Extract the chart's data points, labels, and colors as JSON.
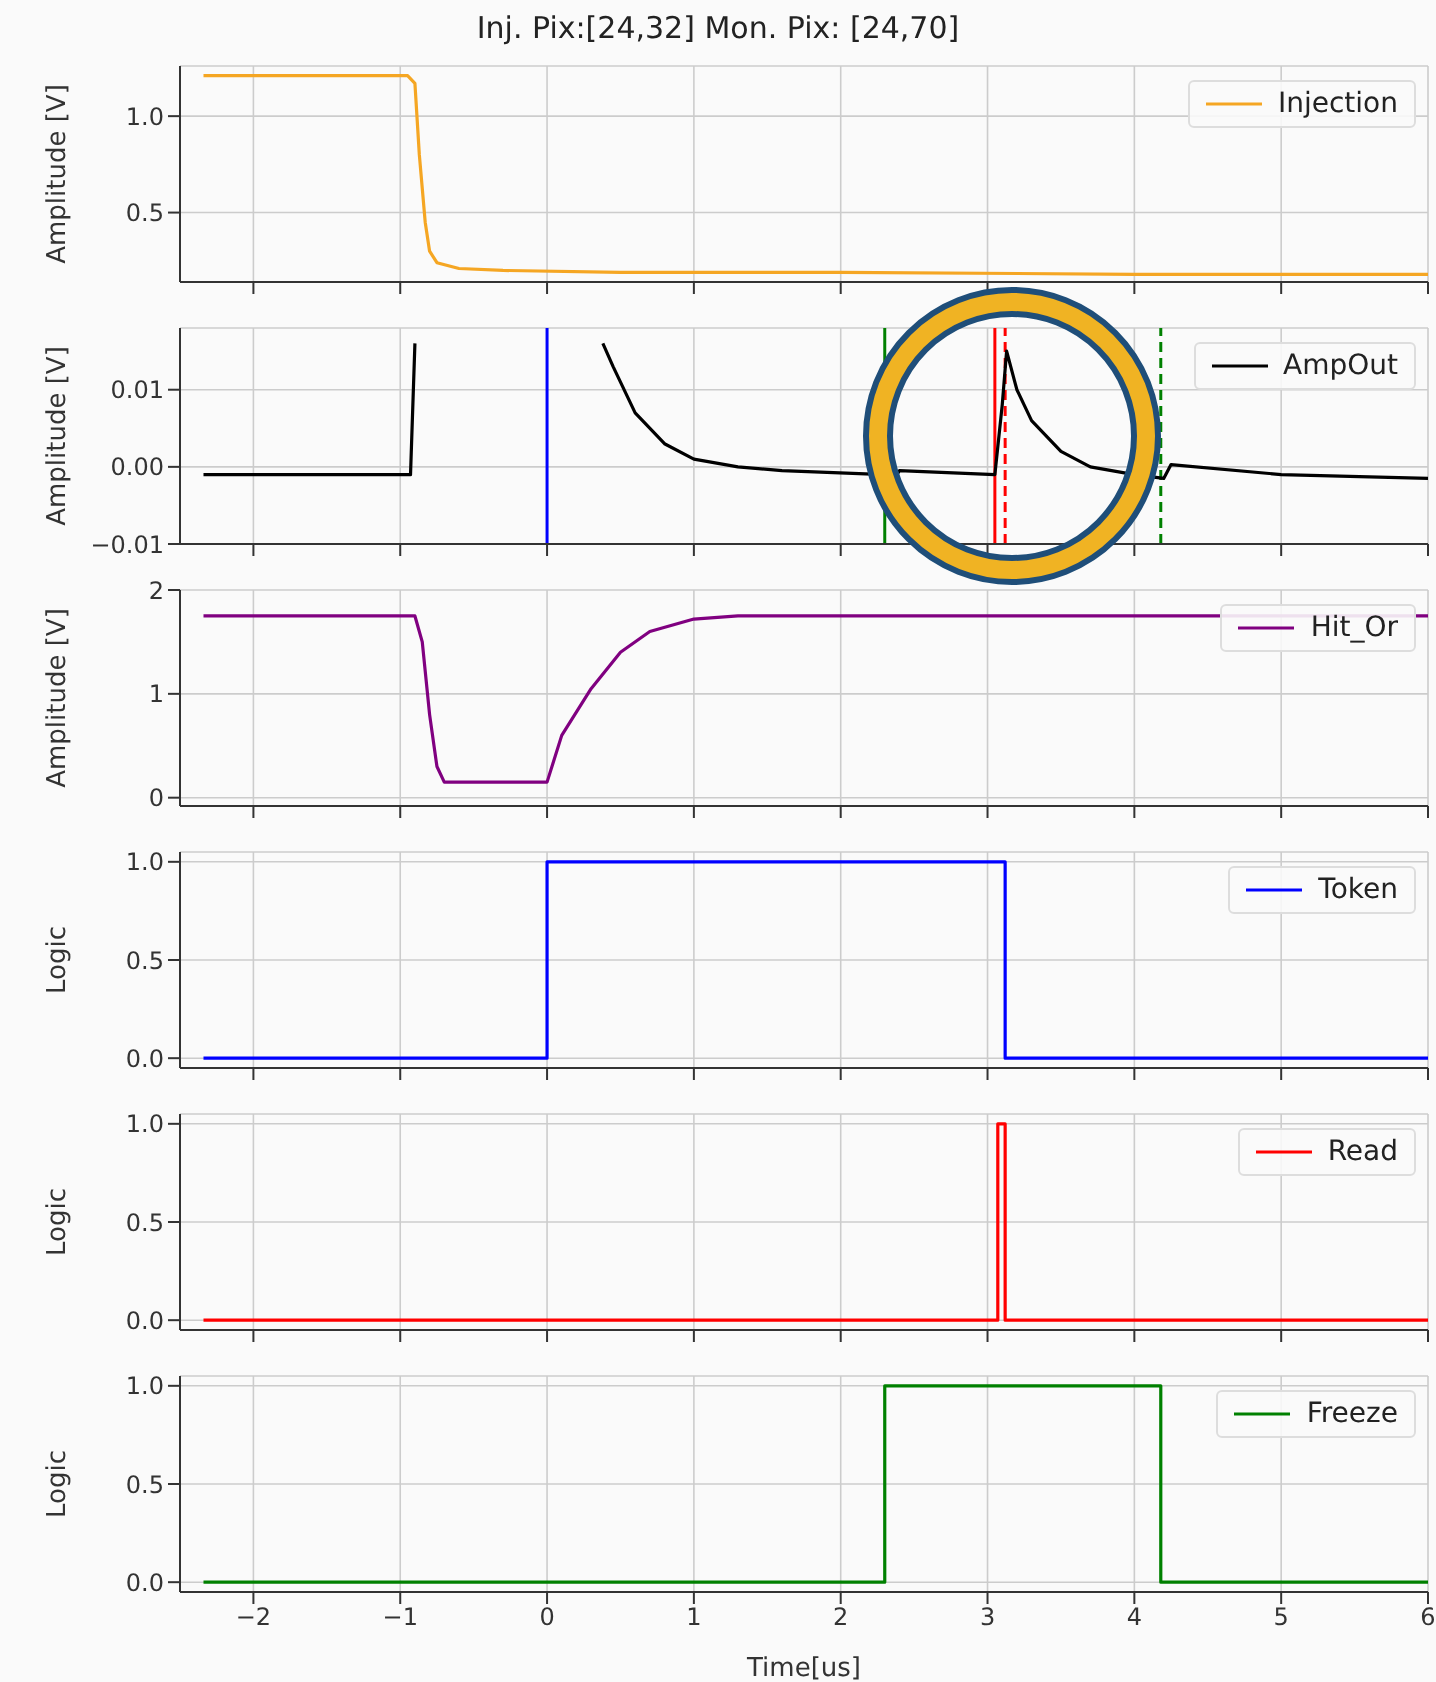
{
  "chart_data": [
    {
      "type": "line",
      "title": "Inj. Pix:[24,32] Mon. Pix: [24,70]",
      "ylabel": "Amplitude [V]",
      "xlim": [
        -2.5,
        6
      ],
      "xticks": [
        -2,
        -1,
        0,
        1,
        2,
        3,
        4,
        5,
        6
      ],
      "ylim": [
        0.14,
        1.26
      ],
      "yticks": [
        0.5,
        {
          "value": 1,
          "label": "1.0"
        }
      ],
      "grid": true,
      "legend": "top right",
      "tick_labels": "y",
      "series": [
        {
          "name": "Injection",
          "color": "#f5a623",
          "x": [
            -2.34,
            -0.95,
            -0.9,
            -0.87,
            -0.83,
            -0.8,
            -0.75,
            -0.6,
            -0.3,
            0.5,
            2,
            4,
            6
          ],
          "values": [
            1.21,
            1.21,
            1.17,
            0.8,
            0.45,
            0.3,
            0.24,
            0.21,
            0.2,
            0.19,
            0.19,
            0.18,
            0.18
          ]
        }
      ]
    },
    {
      "type": "line",
      "ylabel": "Amplitude [V]",
      "xlim": [
        -2.5,
        6
      ],
      "xticks": [
        -2,
        -1,
        0,
        1,
        2,
        3,
        4,
        5,
        6
      ],
      "ylim": [
        -0.01,
        0.018
      ],
      "yticks": [
        {
          "value": -0.01,
          "label": "−0.01"
        },
        {
          "value": 0,
          "label": "0.00"
        },
        0.01
      ],
      "grid": true,
      "legend": "top right",
      "tick_labels": "y",
      "series": [
        {
          "name": "AmpOut",
          "color": "#000000",
          "x": [
            -2.34,
            -1.5,
            -0.93,
            -0.9,
            -0.5,
            0.38,
            0.45,
            0.6,
            0.8,
            1.0,
            1.3,
            1.6,
            2.3,
            2.35,
            2.4,
            3.05,
            3.1,
            3.13,
            3.2,
            3.3,
            3.5,
            3.7,
            4.0,
            4.2,
            4.25,
            5,
            6
          ],
          "values": [
            -0.001,
            -0.001,
            -0.001,
            0.016,
            null,
            0.016,
            0.013,
            0.007,
            0.003,
            0.001,
            0,
            -0.0005,
            -0.001,
            -0.002,
            -0.0005,
            -0.001,
            0.008,
            0.015,
            0.01,
            0.006,
            0.002,
            0,
            -0.001,
            -0.0015,
            0.0003,
            -0.001,
            -0.0015
          ]
        }
      ],
      "ref_lines": [
        {
          "axis": "x",
          "value": 0,
          "color": "#0000ff",
          "line_style": "solid"
        },
        {
          "axis": "x",
          "value": 2.3,
          "color": "#008000",
          "line_style": "solid"
        },
        {
          "axis": "x",
          "value": 3.05,
          "color": "#ff0000",
          "line_style": "solid"
        },
        {
          "axis": "x",
          "value": 3.12,
          "color": "#ff0000",
          "line_style": "dashed"
        },
        {
          "axis": "x",
          "value": 4.18,
          "color": "#008000",
          "line_style": "dashed"
        }
      ]
    },
    {
      "type": "line",
      "ylabel": "Amplitude [V]",
      "xlim": [
        -2.5,
        6
      ],
      "xticks": [
        -2,
        -1,
        0,
        1,
        2,
        3,
        4,
        5,
        6
      ],
      "ylim": [
        -0.08,
        2
      ],
      "yticks": [
        0,
        1,
        2
      ],
      "grid": true,
      "legend": "top right",
      "tick_labels": "y",
      "series": [
        {
          "name": "Hit_Or",
          "color": "#800080",
          "x": [
            -2.34,
            -0.9,
            -0.85,
            -0.8,
            -0.75,
            -0.7,
            0,
            0.1,
            0.3,
            0.5,
            0.7,
            1.0,
            1.3,
            2,
            6
          ],
          "values": [
            1.75,
            1.75,
            1.5,
            0.8,
            0.3,
            0.15,
            0.15,
            0.6,
            1.05,
            1.4,
            1.6,
            1.72,
            1.75,
            1.75,
            1.75
          ]
        }
      ]
    },
    {
      "type": "step",
      "ylabel": "Logic",
      "xlim": [
        -2.5,
        6
      ],
      "xticks": [
        -2,
        -1,
        0,
        1,
        2,
        3,
        4,
        5,
        6
      ],
      "ylim": [
        -0.05,
        1.05
      ],
      "yticks": [
        {
          "value": 0,
          "label": "0.0"
        },
        0.5,
        {
          "value": 1,
          "label": "1.0"
        }
      ],
      "grid": true,
      "legend": "top right",
      "tick_labels": "y",
      "series": [
        {
          "name": "Token",
          "color": "#0000ff",
          "x": [
            -2.34,
            0,
            3.12,
            6
          ],
          "values": [
            0,
            1,
            0,
            0
          ]
        }
      ]
    },
    {
      "type": "step",
      "ylabel": "Logic",
      "xlim": [
        -2.5,
        6
      ],
      "xticks": [
        -2,
        -1,
        0,
        1,
        2,
        3,
        4,
        5,
        6
      ],
      "ylim": [
        -0.05,
        1.05
      ],
      "yticks": [
        {
          "value": 0,
          "label": "0.0"
        },
        0.5,
        {
          "value": 1,
          "label": "1.0"
        }
      ],
      "grid": true,
      "legend": "top right",
      "tick_labels": "y",
      "series": [
        {
          "name": "Read",
          "color": "#ff0000",
          "x": [
            -2.34,
            3.07,
            3.12,
            6
          ],
          "values": [
            0,
            1,
            0,
            0
          ]
        }
      ]
    },
    {
      "type": "step",
      "xlabel": "Time[us]",
      "ylabel": "Logic",
      "xlim": [
        -2.5,
        6
      ],
      "xticks": [
        {
          "value": -2,
          "label": "−2"
        },
        {
          "value": -1,
          "label": "−1"
        },
        0,
        1,
        2,
        3,
        4,
        5,
        6
      ],
      "ylim": [
        -0.05,
        1.05
      ],
      "yticks": [
        {
          "value": 0,
          "label": "0.0"
        },
        0.5,
        {
          "value": 1,
          "label": "1.0"
        }
      ],
      "grid": true,
      "legend": "top right",
      "series": [
        {
          "name": "Freeze",
          "color": "#008000",
          "x": [
            -2.34,
            2.3,
            4.18,
            6
          ],
          "values": [
            0,
            1,
            0,
            0
          ]
        }
      ]
    }
  ]
}
